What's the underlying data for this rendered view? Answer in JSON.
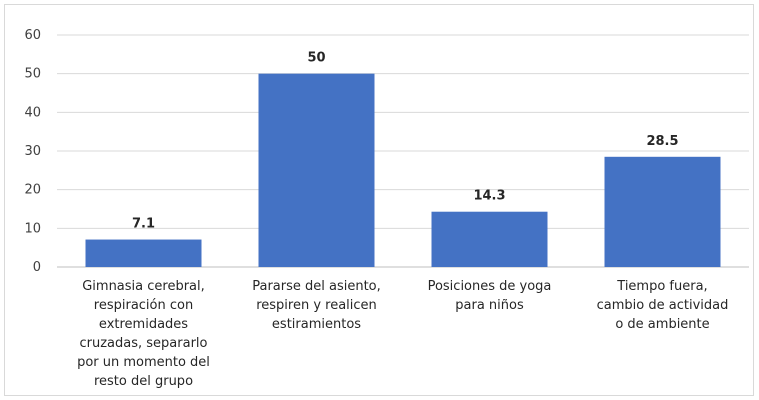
{
  "chart_data": {
    "type": "bar",
    "categories": [
      "Gimnasia cerebral, respiración con extremidades cruzadas, separarlo por un momento del resto del grupo",
      "Pararse del asiento, respiren y realicen estiramientos",
      "Posiciones de yoga para niños",
      "Tiempo fuera, cambio de actividad o de ambiente"
    ],
    "category_lines": [
      [
        "Gimnasia cerebral,",
        "respiración con",
        "extremidades",
        "cruzadas, separarlo",
        "por un momento del",
        "resto del grupo"
      ],
      [
        "Pararse del asiento,",
        "respiren y realicen",
        "estiramientos"
      ],
      [
        "Posiciones de yoga",
        "para niños"
      ],
      [
        "Tiempo fuera,",
        "cambio de actividad",
        "o de ambiente"
      ]
    ],
    "values": [
      7.1,
      50,
      14.3,
      28.5
    ],
    "data_labels": [
      "7.1",
      "50",
      "14.3",
      "28.5"
    ],
    "ylim": [
      0,
      60
    ],
    "yticks": [
      "0",
      "10",
      "20",
      "30",
      "40",
      "50",
      "60"
    ],
    "grid": true,
    "legend": "none",
    "bar_color": "#4472c4",
    "title": "",
    "xlabel": "",
    "ylabel": ""
  }
}
